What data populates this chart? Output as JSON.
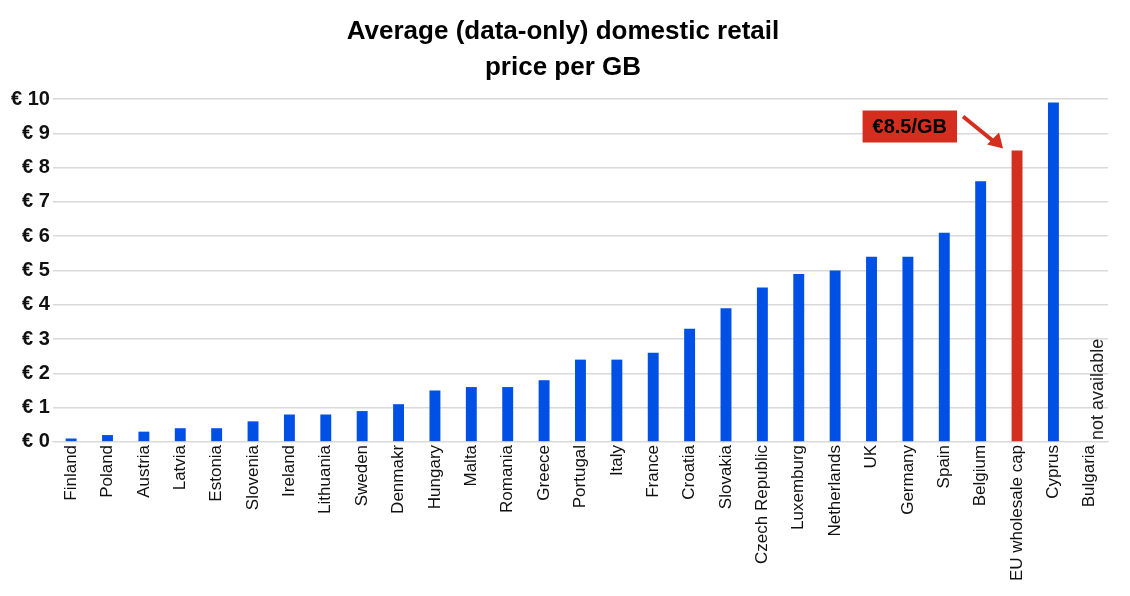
{
  "chart_data": {
    "type": "bar",
    "title": "Average (data-only) domestic retail price per GB",
    "categories": [
      "Finland",
      "Poland",
      "Austria",
      "Latvia",
      "Estonia",
      "Slovenia",
      "Ireland",
      "Lithuania",
      "Sweden",
      "Denmakr",
      "Hungary",
      "Malta",
      "Romania",
      "Greece",
      "Portugal",
      "Italy",
      "France",
      "Croatia",
      "Slovakia",
      "Czech Republic",
      "Luxemburg",
      "Netherlands",
      "UK",
      "Germany",
      "Spain",
      "Belgium",
      "EU wholesale cap",
      "Cyprus",
      "Bulgaria"
    ],
    "values": [
      0.1,
      0.2,
      0.3,
      0.4,
      0.4,
      0.6,
      0.8,
      0.8,
      0.9,
      1.1,
      1.5,
      1.6,
      1.6,
      1.8,
      2.4,
      2.4,
      2.6,
      3.3,
      3.9,
      4.5,
      4.9,
      5.0,
      5.4,
      5.4,
      6.1,
      7.6,
      8.5,
      9.9,
      null
    ],
    "colors": [
      "#0050e6",
      "#0050e6",
      "#0050e6",
      "#0050e6",
      "#0050e6",
      "#0050e6",
      "#0050e6",
      "#0050e6",
      "#0050e6",
      "#0050e6",
      "#0050e6",
      "#0050e6",
      "#0050e6",
      "#0050e6",
      "#0050e6",
      "#0050e6",
      "#0050e6",
      "#0050e6",
      "#0050e6",
      "#0050e6",
      "#0050e6",
      "#0050e6",
      "#0050e6",
      "#0050e6",
      "#0050e6",
      "#0050e6",
      "#d42e1e",
      "#0050e6",
      "#0050e6"
    ],
    "ylim": [
      0,
      10
    ],
    "yticks": [
      {
        "value": 0,
        "label": "€ 0"
      },
      {
        "value": 1,
        "label": "€ 1"
      },
      {
        "value": 2,
        "label": "€ 2"
      },
      {
        "value": 3,
        "label": "€ 3"
      },
      {
        "value": 4,
        "label": "€ 4"
      },
      {
        "value": 5,
        "label": "€ 5"
      },
      {
        "value": 6,
        "label": "€ 6"
      },
      {
        "value": 7,
        "label": "€ 7"
      },
      {
        "value": 8,
        "label": "€ 8"
      },
      {
        "value": 9,
        "label": "€ 9"
      },
      {
        "value": 10,
        "label": "€ 10"
      }
    ],
    "grid": "y",
    "legend": false,
    "annotations": [
      "€8.5/GB",
      "not available"
    ]
  }
}
